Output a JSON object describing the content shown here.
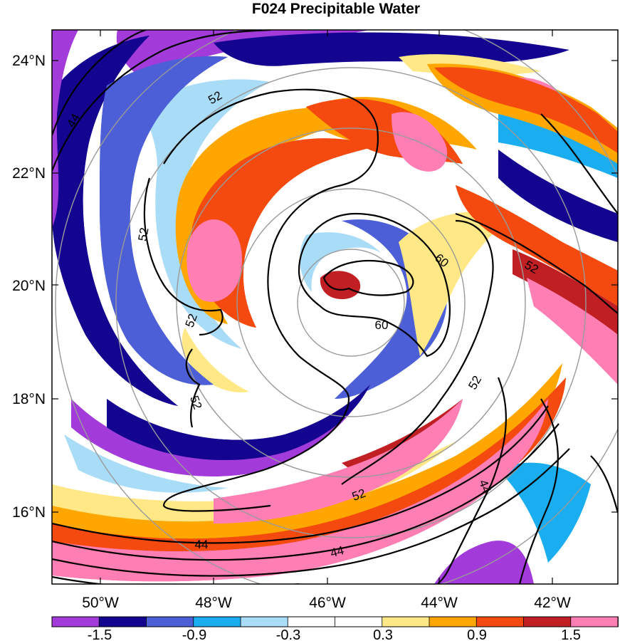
{
  "title": "F024 Precipitable Water",
  "map": {
    "lat_ticks": [
      "24°N",
      "22°N",
      "20°N",
      "18°N",
      "16°N"
    ],
    "lon_ticks": [
      "50°W",
      "48°W",
      "46°W",
      "44°W",
      "42°W"
    ],
    "colors": {
      "neg_1_8": "#a23bd9",
      "neg_1_5": "#13058f",
      "neg_1_2": "#4d5fd6",
      "neg_0_9": "#1aaef0",
      "neg_0_6": "#a9dcf7",
      "neg_0_3": "#ffffff",
      "pos_0_3": "#ffffff",
      "pos_0_6": "#ffe885",
      "pos_0_9": "#ffa700",
      "pos_1_2": "#f54a0f",
      "pos_1_5": "#c01f24",
      "pos_1_8": "#ff7eb4"
    },
    "contour_labels": [
      "52",
      "44",
      "52",
      "52",
      "52",
      "60",
      "60",
      "52",
      "52",
      "52",
      "44"
    ]
  },
  "colorbar": {
    "labels": [
      "-1.5",
      "-0.9",
      "-0.3",
      "0.3",
      "0.9",
      "1.5"
    ],
    "colors": [
      "#a23bd9",
      "#13058f",
      "#4d5fd6",
      "#1aaef0",
      "#a9dcf7",
      "#ffffff",
      "#ffffff",
      "#ffe885",
      "#ffa700",
      "#f54a0f",
      "#c01f24",
      "#ff7eb4"
    ]
  }
}
